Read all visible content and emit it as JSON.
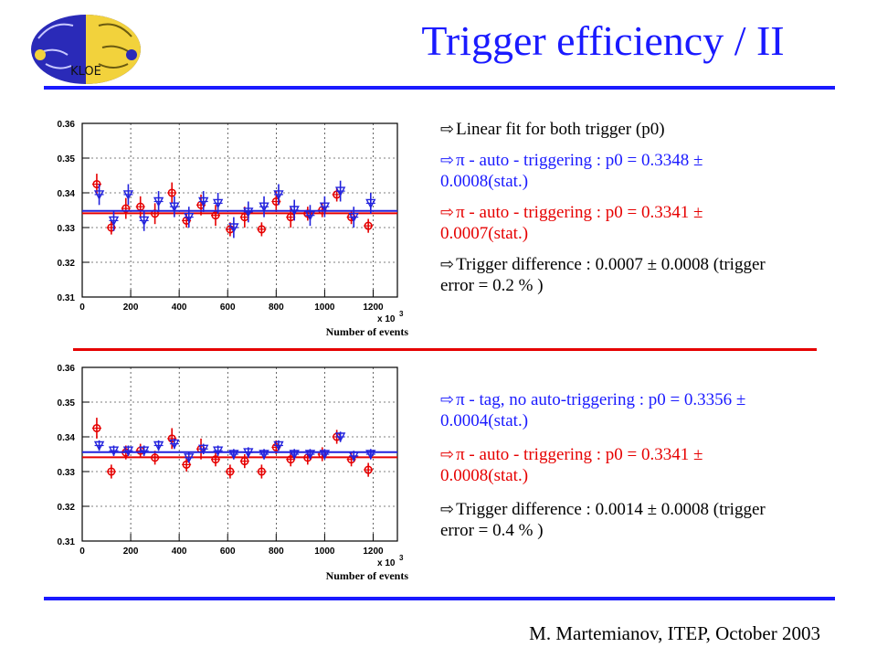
{
  "title": "Trigger efficiency / II",
  "logo_text": "KLOE",
  "footer": "M. Martemianov, ITEP, October 2003",
  "colors": {
    "blue": "#1a1aff",
    "red": "#e60000",
    "line_blue": "#2222dd",
    "dark_blue": "#000099"
  },
  "icons": {
    "bullet": "hollow-right-arrow-icon"
  },
  "annotations_top": [
    {
      "text": "Linear fit for both trigger (p0)",
      "color": "#000000"
    },
    {
      "text": "π - auto - triggering : p0 = 0.3348 ± 0.0008(stat.)",
      "color": "#1a1aff"
    },
    {
      "text": "π - auto - triggering : p0 = 0.3341 ± 0.0007(stat.)",
      "color": "#e60000"
    },
    {
      "text": "Trigger difference  : 0.0007 ± 0.0008 (trigger error = 0.2 % )",
      "color": "#000000"
    }
  ],
  "annotations_bottom": [
    {
      "text": "π - tag, no auto-triggering : p0 = 0.3356 ± 0.0004(stat.)",
      "color": "#1a1aff"
    },
    {
      "text": "π - auto - triggering : p0 = 0.3341 ± 0.0008(stat.)",
      "color": "#e60000"
    },
    {
      "text": "Trigger difference  : 0.0014 ± 0.0008 (trigger error = 0.4 % )",
      "color": "#000000"
    }
  ],
  "chart_data": [
    {
      "type": "scatter",
      "xlabel": "Number of events",
      "x_multiplier": "x 10",
      "x_multiplier_exp": "3",
      "xlim": [
        0,
        1300
      ],
      "ylim": [
        0.31,
        0.36
      ],
      "xticks": [
        0,
        200,
        400,
        600,
        800,
        1000,
        1200
      ],
      "xtick_labels": [
        "0",
        "200",
        "400",
        "600",
        "800",
        "1000",
        "1200"
      ],
      "yticks": [
        0.31,
        0.32,
        0.33,
        0.34,
        0.35,
        0.36
      ],
      "ytick_labels": [
        "0.31",
        "0.32",
        "0.33",
        "0.34",
        "0.35",
        "0.36"
      ],
      "grid": true,
      "series": [
        {
          "color": "#e60000",
          "marker": "circle",
          "fit": 0.3341,
          "x": [
            60,
            120,
            180,
            240,
            300,
            370,
            430,
            490,
            550,
            610,
            670,
            740,
            800,
            860,
            930,
            990,
            1050,
            1110,
            1180
          ],
          "y": [
            0.3425,
            0.33,
            0.3355,
            0.336,
            0.334,
            0.34,
            0.332,
            0.3365,
            0.3335,
            0.3295,
            0.333,
            0.3295,
            0.3375,
            0.333,
            0.334,
            0.335,
            0.3395,
            0.333,
            0.3305
          ],
          "err": [
            0.003,
            0.002,
            0.003,
            0.003,
            0.003,
            0.003,
            0.002,
            0.003,
            0.003,
            0.002,
            0.003,
            0.002,
            0.003,
            0.003,
            0.002,
            0.002,
            0.002,
            0.002,
            0.002
          ]
        },
        {
          "color": "#2222dd",
          "marker": "triangle-down",
          "fit": 0.3348,
          "x": [
            70,
            130,
            190,
            255,
            315,
            380,
            440,
            500,
            560,
            625,
            685,
            750,
            810,
            875,
            940,
            1000,
            1065,
            1120,
            1190
          ],
          "y": [
            0.3395,
            0.332,
            0.3395,
            0.332,
            0.3375,
            0.336,
            0.333,
            0.3375,
            0.337,
            0.33,
            0.3345,
            0.336,
            0.3395,
            0.335,
            0.3335,
            0.336,
            0.3405,
            0.333,
            0.337
          ],
          "err": [
            0.003,
            0.003,
            0.003,
            0.003,
            0.003,
            0.003,
            0.003,
            0.003,
            0.003,
            0.003,
            0.003,
            0.003,
            0.003,
            0.003,
            0.003,
            0.003,
            0.003,
            0.003,
            0.003
          ]
        }
      ]
    },
    {
      "type": "scatter",
      "xlabel": "Number of events",
      "x_multiplier": "x 10",
      "x_multiplier_exp": "3",
      "xlim": [
        0,
        1300
      ],
      "ylim": [
        0.31,
        0.36
      ],
      "xticks": [
        0,
        200,
        400,
        600,
        800,
        1000,
        1200
      ],
      "xtick_labels": [
        "0",
        "200",
        "400",
        "600",
        "800",
        "1000",
        "1200"
      ],
      "yticks": [
        0.31,
        0.32,
        0.33,
        0.34,
        0.35,
        0.36
      ],
      "ytick_labels": [
        "0.31",
        "0.32",
        "0.33",
        "0.34",
        "0.35",
        "0.36"
      ],
      "grid": true,
      "series": [
        {
          "color": "#e60000",
          "marker": "circle",
          "fit": 0.3341,
          "x": [
            60,
            120,
            180,
            240,
            300,
            370,
            430,
            490,
            550,
            610,
            670,
            740,
            800,
            860,
            930,
            990,
            1050,
            1110,
            1180
          ],
          "y": [
            0.3425,
            0.33,
            0.3355,
            0.336,
            0.334,
            0.3395,
            0.332,
            0.3365,
            0.3335,
            0.33,
            0.333,
            0.33,
            0.337,
            0.3335,
            0.334,
            0.335,
            0.34,
            0.3335,
            0.3305
          ],
          "err": [
            0.003,
            0.002,
            0.002,
            0.002,
            0.002,
            0.003,
            0.002,
            0.003,
            0.002,
            0.002,
            0.002,
            0.002,
            0.002,
            0.002,
            0.002,
            0.002,
            0.002,
            0.002,
            0.002
          ]
        },
        {
          "color": "#2222dd",
          "marker": "triangle-down",
          "fit": 0.3356,
          "x": [
            70,
            130,
            190,
            255,
            315,
            380,
            440,
            500,
            560,
            625,
            685,
            750,
            810,
            875,
            940,
            1000,
            1065,
            1120,
            1190
          ],
          "y": [
            0.3375,
            0.336,
            0.336,
            0.336,
            0.3375,
            0.338,
            0.334,
            0.3365,
            0.336,
            0.335,
            0.3355,
            0.335,
            0.3375,
            0.335,
            0.335,
            0.335,
            0.34,
            0.3345,
            0.335
          ],
          "err": [
            0.0015,
            0.0015,
            0.0015,
            0.0015,
            0.0015,
            0.0015,
            0.0015,
            0.0015,
            0.0015,
            0.0015,
            0.0015,
            0.0015,
            0.0015,
            0.0015,
            0.0015,
            0.0015,
            0.0015,
            0.0015,
            0.0015
          ]
        }
      ]
    }
  ]
}
